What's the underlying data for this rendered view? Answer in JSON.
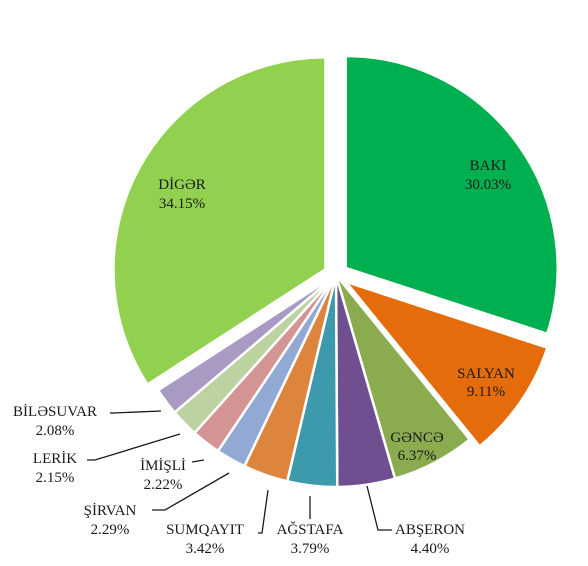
{
  "chart_data": {
    "type": "pie",
    "title": "",
    "slices": [
      {
        "label": "BAKI",
        "value": 30.03,
        "value_label": "30.03%",
        "color": "#00b050"
      },
      {
        "label": "SALYAN",
        "value": 9.11,
        "value_label": "9.11%",
        "color": "#e46c0a"
      },
      {
        "label": "GƏNCƏ",
        "value": 6.37,
        "value_label": "6.37%",
        "color": "#8aab4e"
      },
      {
        "label": "ABŞERON",
        "value": 4.4,
        "value_label": "4.40%",
        "color": "#6f4f8f"
      },
      {
        "label": "AĞSTAFA",
        "value": 3.79,
        "value_label": "3.79%",
        "color": "#3d9aad"
      },
      {
        "label": "SUMQAYIT",
        "value": 3.42,
        "value_label": "3.42%",
        "color": "#de853d"
      },
      {
        "label": "ŞİRVAN",
        "value": 2.29,
        "value_label": "2.29%",
        "color": "#91a9d3"
      },
      {
        "label": "İMİŞLİ",
        "value": 2.22,
        "value_label": "2.22%",
        "color": "#d49494"
      },
      {
        "label": "LERİK",
        "value": 2.15,
        "value_label": "2.15%",
        "color": "#bcd2a0"
      },
      {
        "label": "BİLƏSUVAR",
        "value": 2.08,
        "value_label": "2.08%",
        "color": "#a99ac4"
      },
      {
        "label": "DİGƏR",
        "value": 34.15,
        "value_label": "34.15%",
        "color": "#92d050"
      }
    ],
    "exploded": [
      "BAKI",
      "SALYAN",
      "DİGƏR"
    ],
    "legend": "none"
  }
}
